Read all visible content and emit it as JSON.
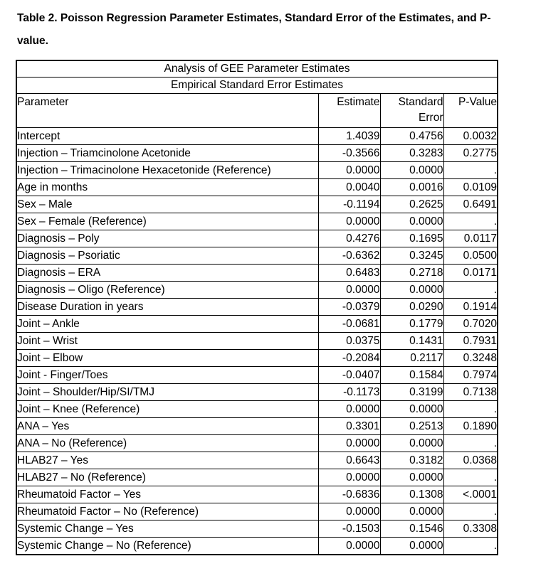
{
  "page": {
    "title_lines": [
      "Table 2. Poisson Regression Parameter Estimates, Standard Error of the Estimates, and P-",
      "value."
    ]
  },
  "colors": {
    "text": "#000000",
    "border": "#000000",
    "background": "#ffffff"
  },
  "table": {
    "span_header_1": "Analysis of GEE Parameter Estimates",
    "span_header_2": "Empirical Standard Error Estimates",
    "columns": [
      "Parameter",
      "Estimate",
      "Standard Error",
      "P-Value"
    ],
    "rows": [
      {
        "parameter": "Intercept",
        "estimate": "1.4039",
        "std_error": "0.4756",
        "p_value": "0.0032",
        "p_bold": false
      },
      {
        "parameter": "Injection – Triamcinolone Acetonide",
        "estimate": "-0.3566",
        "std_error": "0.3283",
        "p_value": "0.2775",
        "p_bold": false
      },
      {
        "parameter": "Injection – Trimacinolone Hexacetonide (Reference)",
        "estimate": "0.0000",
        "std_error": "0.0000",
        "p_value": ".",
        "p_bold": false
      },
      {
        "parameter": "Age in months",
        "estimate": "0.0040",
        "std_error": "0.0016",
        "p_value": "0.0109",
        "p_bold": true
      },
      {
        "parameter": "Sex – Male",
        "estimate": "-0.1194",
        "std_error": "0.2625",
        "p_value": "0.6491",
        "p_bold": false
      },
      {
        "parameter": "Sex – Female (Reference)",
        "estimate": "0.0000",
        "std_error": "0.0000",
        "p_value": ".",
        "p_bold": false
      },
      {
        "parameter": "Diagnosis – Poly",
        "estimate": "0.4276",
        "std_error": "0.1695",
        "p_value": "0.0117",
        "p_bold": true
      },
      {
        "parameter": "Diagnosis – Psoriatic",
        "estimate": "-0.6362",
        "std_error": "0.3245",
        "p_value": "0.0500",
        "p_bold": false
      },
      {
        "parameter": "Diagnosis – ERA",
        "estimate": "0.6483",
        "std_error": "0.2718",
        "p_value": "0.0171",
        "p_bold": true
      },
      {
        "parameter": "Diagnosis – Oligo (Reference)",
        "estimate": "0.0000",
        "std_error": "0.0000",
        "p_value": ".",
        "p_bold": false
      },
      {
        "parameter": "Disease Duration in years",
        "estimate": "-0.0379",
        "std_error": "0.0290",
        "p_value": "0.1914",
        "p_bold": false
      },
      {
        "parameter": "Joint – Ankle",
        "estimate": "-0.0681",
        "std_error": "0.1779",
        "p_value": "0.7020",
        "p_bold": false
      },
      {
        "parameter": "Joint – Wrist",
        "estimate": "0.0375",
        "std_error": "0.1431",
        "p_value": "0.7931",
        "p_bold": false
      },
      {
        "parameter": "Joint – Elbow",
        "estimate": "-0.2084",
        "std_error": "0.2117",
        "p_value": "0.3248",
        "p_bold": false
      },
      {
        "parameter": "Joint - Finger/Toes",
        "estimate": "-0.0407",
        "std_error": "0.1584",
        "p_value": "0.7974",
        "p_bold": false
      },
      {
        "parameter": "Joint – Shoulder/Hip/SI/TMJ",
        "estimate": "-0.1173",
        "std_error": "0.3199",
        "p_value": "0.7138",
        "p_bold": false
      },
      {
        "parameter": "Joint – Knee (Reference)",
        "estimate": "0.0000",
        "std_error": "0.0000",
        "p_value": ".",
        "p_bold": false
      },
      {
        "parameter": "ANA – Yes",
        "estimate": "0.3301",
        "std_error": "0.2513",
        "p_value": "0.1890",
        "p_bold": false
      },
      {
        "parameter": "ANA – No (Reference)",
        "estimate": "0.0000",
        "std_error": "0.0000",
        "p_value": ".",
        "p_bold": false
      },
      {
        "parameter": "HLAB27 – Yes",
        "estimate": "0.6643",
        "std_error": "0.3182",
        "p_value": "0.0368",
        "p_bold": true
      },
      {
        "parameter": "HLAB27 – No (Reference)",
        "estimate": "0.0000",
        "std_error": "0.0000",
        "p_value": ".",
        "p_bold": false
      },
      {
        "parameter": "Rheumatoid Factor – Yes",
        "estimate": "-0.6836",
        "std_error": "0.1308",
        "p_value": "<.0001",
        "p_bold": true
      },
      {
        "parameter": "Rheumatoid Factor – No (Reference)",
        "estimate": "0.0000",
        "std_error": "0.0000",
        "p_value": ".",
        "p_bold": false
      },
      {
        "parameter": "Systemic Change – Yes",
        "estimate": "-0.1503",
        "std_error": "0.1546",
        "p_value": "0.3308",
        "p_bold": false
      },
      {
        "parameter": "Systemic Change – No (Reference)",
        "estimate": "0.0000",
        "std_error": "0.0000",
        "p_value": ".",
        "p_bold": false
      }
    ]
  }
}
